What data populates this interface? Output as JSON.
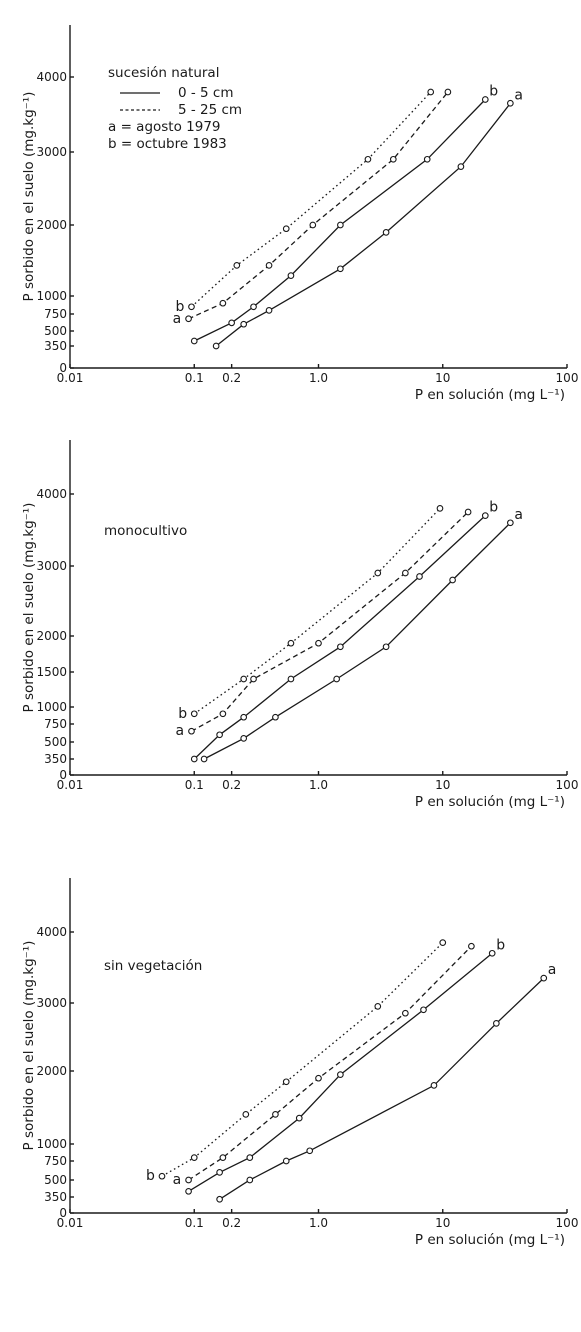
{
  "chart_data": [
    {
      "type": "line",
      "annotation": "sucesión natural",
      "xlabel": "P en solución (mg L⁻¹)",
      "ylabel": "P sorbido en el suelo (mg.kg⁻¹)",
      "x_scale": "log",
      "xlim": [
        0.01,
        100
      ],
      "ylim": [
        0,
        4000
      ],
      "x_ticks": [
        "0.01",
        "0.1",
        "0.2",
        "1.0",
        "10",
        "100"
      ],
      "y_ticks": [
        "0",
        "350",
        "500",
        "750",
        "1000",
        "2000",
        "3000",
        "4000"
      ],
      "legend": {
        "title": "sucesión natural",
        "entries": [
          "0 - 5 cm",
          "5 - 25 cm",
          "a = agosto 1979",
          "b = octubre 1983"
        ]
      },
      "series": [
        {
          "name": "0 - 5 cm",
          "label": "a",
          "style": "solid",
          "points": [
            [
              0.15,
              350
            ],
            [
              0.25,
              600
            ],
            [
              0.4,
              800
            ],
            [
              1.5,
              1400
            ],
            [
              3.5,
              1900
            ],
            [
              14,
              2800
            ],
            [
              35,
              3650
            ]
          ]
        },
        {
          "name": "0 - 5 cm",
          "label": "b",
          "style": "solid",
          "points": [
            [
              0.1,
              400
            ],
            [
              0.2,
              620
            ],
            [
              0.3,
              850
            ],
            [
              0.6,
              1300
            ],
            [
              1.5,
              2000
            ],
            [
              7.5,
              2900
            ],
            [
              22,
              3700
            ]
          ]
        },
        {
          "name": "5 - 25 cm",
          "label": "a",
          "style": "dashed",
          "points": [
            [
              0.09,
              680
            ],
            [
              0.17,
              900
            ],
            [
              0.4,
              1450
            ],
            [
              0.9,
              2000
            ],
            [
              4,
              2900
            ],
            [
              11,
              3800
            ]
          ]
        },
        {
          "name": "5 - 25 cm",
          "label": "b",
          "style": "dotted",
          "points": [
            [
              0.095,
              850
            ],
            [
              0.22,
              1450
            ],
            [
              0.55,
              1950
            ],
            [
              2.5,
              2900
            ],
            [
              8,
              3800
            ]
          ]
        }
      ]
    },
    {
      "type": "line",
      "annotation": "monocultivo",
      "xlabel": "P en solución (mg L⁻¹)",
      "ylabel": "P sorbido en el suelo (mg.kg⁻¹)",
      "x_scale": "log",
      "xlim": [
        0.01,
        100
      ],
      "ylim": [
        0,
        4000
      ],
      "x_ticks": [
        "0.01",
        "0.1",
        "0.2",
        "1.0",
        "10",
        "100"
      ],
      "y_ticks": [
        "0",
        "350",
        "500",
        "750",
        "1000",
        "1500",
        "2000",
        "3000",
        "4000"
      ],
      "series": [
        {
          "label": "a",
          "style": "solid",
          "points": [
            [
              0.12,
              350
            ],
            [
              0.25,
              550
            ],
            [
              0.45,
              850
            ],
            [
              1.4,
              1400
            ],
            [
              3.5,
              1850
            ],
            [
              12,
              2800
            ],
            [
              35,
              3600
            ]
          ]
        },
        {
          "label": "b",
          "style": "solid",
          "points": [
            [
              0.1,
              350
            ],
            [
              0.16,
              600
            ],
            [
              0.25,
              850
            ],
            [
              0.6,
              1400
            ],
            [
              1.5,
              1850
            ],
            [
              6.5,
              2850
            ],
            [
              22,
              3700
            ]
          ]
        },
        {
          "label": "a",
          "style": "dashed",
          "points": [
            [
              0.095,
              650
            ],
            [
              0.17,
              900
            ],
            [
              0.3,
              1400
            ],
            [
              1.0,
              1900
            ],
            [
              5,
              2900
            ],
            [
              16,
              3750
            ]
          ]
        },
        {
          "label": "b",
          "style": "dotted",
          "points": [
            [
              0.1,
              900
            ],
            [
              0.25,
              1400
            ],
            [
              0.6,
              1900
            ],
            [
              3,
              2900
            ],
            [
              9.5,
              3800
            ]
          ]
        }
      ]
    },
    {
      "type": "line",
      "annotation": "sin vegetación",
      "xlabel": "P en solución (mg L⁻¹)",
      "ylabel": "P sorbido en el suelo (mg.kg⁻¹)",
      "x_scale": "log",
      "xlim": [
        0.01,
        100
      ],
      "ylim": [
        0,
        4000
      ],
      "x_ticks": [
        "0.01",
        "0.1",
        "0.2",
        "1.0",
        "10",
        "100"
      ],
      "y_ticks": [
        "0",
        "350",
        "500",
        "750",
        "1000",
        "2000",
        "3000",
        "4000"
      ],
      "series": [
        {
          "label": "a",
          "style": "solid",
          "points": [
            [
              0.16,
              300
            ],
            [
              0.28,
              500
            ],
            [
              0.55,
              750
            ],
            [
              0.85,
              900
            ],
            [
              8.5,
              1800
            ],
            [
              27,
              2700
            ],
            [
              65,
              3350
            ]
          ]
        },
        {
          "label": "b",
          "style": "solid",
          "points": [
            [
              0.09,
              400
            ],
            [
              0.16,
              600
            ],
            [
              0.28,
              800
            ],
            [
              0.7,
              1350
            ],
            [
              1.5,
              1950
            ],
            [
              7,
              2900
            ],
            [
              25,
              3700
            ]
          ]
        },
        {
          "label": "a",
          "style": "dashed",
          "points": [
            [
              0.09,
              500
            ],
            [
              0.17,
              800
            ],
            [
              0.45,
              1400
            ],
            [
              1.0,
              1900
            ],
            [
              5,
              2850
            ],
            [
              17,
              3800
            ]
          ]
        },
        {
          "label": "b",
          "style": "dotted",
          "points": [
            [
              0.055,
              550
            ],
            [
              0.1,
              800
            ],
            [
              0.26,
              1400
            ],
            [
              0.55,
              1850
            ],
            [
              3,
              2950
            ],
            [
              10,
              3850
            ]
          ]
        }
      ]
    }
  ]
}
